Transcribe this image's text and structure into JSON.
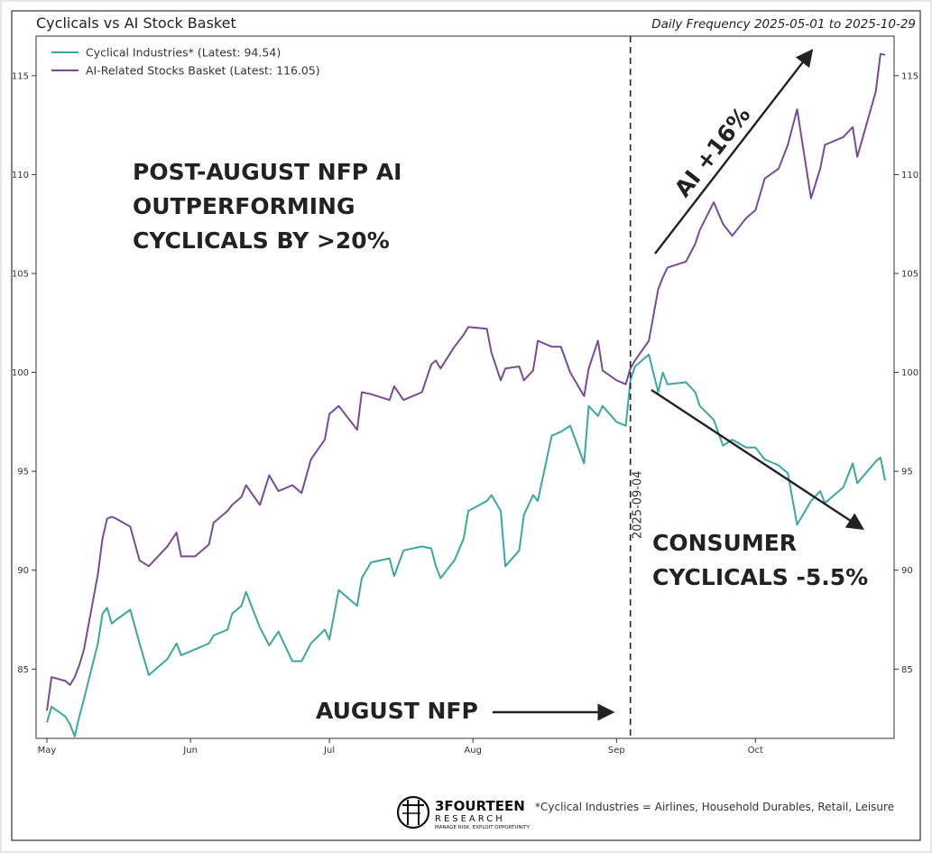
{
  "header": {
    "title": "Cyclicals vs AI Stock Basket",
    "subtitle": "Daily Frequency 2025-05-01 to 2025-10-29"
  },
  "legend": [
    {
      "label": "Cyclical Industries* (Latest: 94.54)",
      "color": "#3aa8a0"
    },
    {
      "label": "AI-Related Stocks Basket (Latest: 116.05)",
      "color": "#7a4a98"
    }
  ],
  "annotations": {
    "headline_lines": [
      "POST-AUGUST NFP AI",
      "OUTPERFORMING",
      "CYCLICALS BY >20%"
    ],
    "ai_label": "AI +16%",
    "consumer_lines": [
      "CONSUMER",
      "CYCLICALS -5.5%"
    ],
    "nfp_label": "AUGUST NFP",
    "vline_label": "2025-09-04"
  },
  "footer": {
    "brand_name": "3FOURTEEN",
    "brand_sub": "RESEARCH",
    "brand_tagline": "MANAGE RISK. EXPLOIT OPPORTUNITY",
    "note": "*Cyclical Industries = Airlines, Household Durables, Retail, Leisure"
  },
  "chart_data": {
    "type": "line",
    "title": "Cyclicals vs AI Stock Basket",
    "subtitle": "Daily Frequency 2025-05-01 to 2025-10-29",
    "x_start": "2025-05-01",
    "x_end": "2025-10-29",
    "ylim": [
      81.5,
      117
    ],
    "yticks": [
      85,
      90,
      95,
      100,
      105,
      110,
      115
    ],
    "xticks": [
      {
        "label": "May",
        "date": "2025-05-01"
      },
      {
        "label": "Jun",
        "date": "2025-06-01"
      },
      {
        "label": "Jul",
        "date": "2025-07-01"
      },
      {
        "label": "Aug",
        "date": "2025-08-01"
      },
      {
        "label": "Sep",
        "date": "2025-09-01"
      },
      {
        "label": "Oct",
        "date": "2025-10-01"
      }
    ],
    "vline": {
      "date": "2025-09-04",
      "label": "2025-09-04"
    },
    "legend_position": "top-left",
    "grid": false,
    "series": [
      {
        "name": "Cyclical Industries* (Latest: 94.54)",
        "color": "#3aa8a0",
        "points": [
          [
            "2025-05-01",
            82.3
          ],
          [
            "2025-05-02",
            83.1
          ],
          [
            "2025-05-05",
            82.6
          ],
          [
            "2025-05-06",
            82.2
          ],
          [
            "2025-05-07",
            81.6
          ],
          [
            "2025-05-08",
            82.6
          ],
          [
            "2025-05-09",
            83.5
          ],
          [
            "2025-05-12",
            86.3
          ],
          [
            "2025-05-13",
            87.8
          ],
          [
            "2025-05-14",
            88.1
          ],
          [
            "2025-05-15",
            87.3
          ],
          [
            "2025-05-16",
            87.5
          ],
          [
            "2025-05-19",
            88.0
          ],
          [
            "2025-05-21",
            86.3
          ],
          [
            "2025-05-23",
            84.7
          ],
          [
            "2025-05-27",
            85.5
          ],
          [
            "2025-05-29",
            86.3
          ],
          [
            "2025-05-30",
            85.7
          ],
          [
            "2025-06-02",
            86.0
          ],
          [
            "2025-06-05",
            86.3
          ],
          [
            "2025-06-06",
            86.7
          ],
          [
            "2025-06-09",
            87.0
          ],
          [
            "2025-06-10",
            87.8
          ],
          [
            "2025-06-12",
            88.2
          ],
          [
            "2025-06-13",
            88.9
          ],
          [
            "2025-06-16",
            87.1
          ],
          [
            "2025-06-18",
            86.2
          ],
          [
            "2025-06-20",
            86.9
          ],
          [
            "2025-06-23",
            85.4
          ],
          [
            "2025-06-25",
            85.4
          ],
          [
            "2025-06-27",
            86.3
          ],
          [
            "2025-06-30",
            87.0
          ],
          [
            "2025-07-01",
            86.5
          ],
          [
            "2025-07-03",
            89.0
          ],
          [
            "2025-07-07",
            88.2
          ],
          [
            "2025-07-08",
            89.6
          ],
          [
            "2025-07-10",
            90.4
          ],
          [
            "2025-07-14",
            90.6
          ],
          [
            "2025-07-15",
            89.7
          ],
          [
            "2025-07-17",
            91.0
          ],
          [
            "2025-07-21",
            91.2
          ],
          [
            "2025-07-23",
            91.1
          ],
          [
            "2025-07-24",
            90.2
          ],
          [
            "2025-07-25",
            89.6
          ],
          [
            "2025-07-28",
            90.5
          ],
          [
            "2025-07-30",
            91.6
          ],
          [
            "2025-07-31",
            93.0
          ],
          [
            "2025-08-04",
            93.5
          ],
          [
            "2025-08-05",
            93.8
          ],
          [
            "2025-08-07",
            93.0
          ],
          [
            "2025-08-08",
            90.2
          ],
          [
            "2025-08-11",
            91.0
          ],
          [
            "2025-08-12",
            92.8
          ],
          [
            "2025-08-14",
            93.8
          ],
          [
            "2025-08-15",
            93.5
          ],
          [
            "2025-08-18",
            96.8
          ],
          [
            "2025-08-20",
            97.0
          ],
          [
            "2025-08-22",
            97.3
          ],
          [
            "2025-08-25",
            95.4
          ],
          [
            "2025-08-26",
            98.3
          ],
          [
            "2025-08-28",
            97.8
          ],
          [
            "2025-08-29",
            98.3
          ],
          [
            "2025-09-01",
            97.5
          ],
          [
            "2025-09-03",
            97.3
          ],
          [
            "2025-09-04",
            99.6
          ],
          [
            "2025-09-05",
            100.3
          ],
          [
            "2025-09-08",
            100.9
          ],
          [
            "2025-09-10",
            99.0
          ],
          [
            "2025-09-11",
            100.0
          ],
          [
            "2025-09-12",
            99.4
          ],
          [
            "2025-09-16",
            99.5
          ],
          [
            "2025-09-18",
            99.0
          ],
          [
            "2025-09-19",
            98.3
          ],
          [
            "2025-09-22",
            97.6
          ],
          [
            "2025-09-24",
            96.3
          ],
          [
            "2025-09-26",
            96.6
          ],
          [
            "2025-09-29",
            96.2
          ],
          [
            "2025-10-01",
            96.2
          ],
          [
            "2025-10-03",
            95.6
          ],
          [
            "2025-10-06",
            95.3
          ],
          [
            "2025-10-08",
            94.9
          ],
          [
            "2025-10-10",
            92.3
          ],
          [
            "2025-10-13",
            93.5
          ],
          [
            "2025-10-15",
            94.0
          ],
          [
            "2025-10-16",
            93.4
          ],
          [
            "2025-10-20",
            94.2
          ],
          [
            "2025-10-22",
            95.4
          ],
          [
            "2025-10-23",
            94.4
          ],
          [
            "2025-10-27",
            95.5
          ],
          [
            "2025-10-28",
            95.7
          ],
          [
            "2025-10-29",
            94.54
          ]
        ]
      },
      {
        "name": "AI-Related Stocks Basket (Latest: 116.05)",
        "color": "#7a4a98",
        "points": [
          [
            "2025-05-01",
            82.9
          ],
          [
            "2025-05-02",
            84.6
          ],
          [
            "2025-05-05",
            84.4
          ],
          [
            "2025-05-06",
            84.2
          ],
          [
            "2025-05-07",
            84.6
          ],
          [
            "2025-05-08",
            85.2
          ],
          [
            "2025-05-09",
            86.0
          ],
          [
            "2025-05-12",
            89.8
          ],
          [
            "2025-05-13",
            91.6
          ],
          [
            "2025-05-14",
            92.6
          ],
          [
            "2025-05-15",
            92.7
          ],
          [
            "2025-05-16",
            92.6
          ],
          [
            "2025-05-19",
            92.2
          ],
          [
            "2025-05-21",
            90.5
          ],
          [
            "2025-05-23",
            90.2
          ],
          [
            "2025-05-27",
            91.2
          ],
          [
            "2025-05-29",
            91.9
          ],
          [
            "2025-05-30",
            90.7
          ],
          [
            "2025-06-02",
            90.7
          ],
          [
            "2025-06-05",
            91.3
          ],
          [
            "2025-06-06",
            92.4
          ],
          [
            "2025-06-09",
            93.0
          ],
          [
            "2025-06-10",
            93.3
          ],
          [
            "2025-06-12",
            93.7
          ],
          [
            "2025-06-13",
            94.3
          ],
          [
            "2025-06-16",
            93.3
          ],
          [
            "2025-06-18",
            94.8
          ],
          [
            "2025-06-20",
            94.0
          ],
          [
            "2025-06-23",
            94.3
          ],
          [
            "2025-06-25",
            93.9
          ],
          [
            "2025-06-27",
            95.6
          ],
          [
            "2025-06-30",
            96.6
          ],
          [
            "2025-07-01",
            97.9
          ],
          [
            "2025-07-03",
            98.3
          ],
          [
            "2025-07-07",
            97.1
          ],
          [
            "2025-07-08",
            99.0
          ],
          [
            "2025-07-10",
            98.9
          ],
          [
            "2025-07-14",
            98.6
          ],
          [
            "2025-07-15",
            99.3
          ],
          [
            "2025-07-17",
            98.6
          ],
          [
            "2025-07-21",
            99.0
          ],
          [
            "2025-07-23",
            100.4
          ],
          [
            "2025-07-24",
            100.6
          ],
          [
            "2025-07-25",
            100.2
          ],
          [
            "2025-07-28",
            101.3
          ],
          [
            "2025-07-30",
            101.9
          ],
          [
            "2025-07-31",
            102.3
          ],
          [
            "2025-08-04",
            102.2
          ],
          [
            "2025-08-05",
            101.0
          ],
          [
            "2025-08-07",
            99.6
          ],
          [
            "2025-08-08",
            100.2
          ],
          [
            "2025-08-11",
            100.3
          ],
          [
            "2025-08-12",
            99.6
          ],
          [
            "2025-08-14",
            100.1
          ],
          [
            "2025-08-15",
            101.6
          ],
          [
            "2025-08-18",
            101.3
          ],
          [
            "2025-08-20",
            101.3
          ],
          [
            "2025-08-22",
            100.0
          ],
          [
            "2025-08-25",
            98.8
          ],
          [
            "2025-08-26",
            100.2
          ],
          [
            "2025-08-28",
            101.6
          ],
          [
            "2025-08-29",
            100.1
          ],
          [
            "2025-09-01",
            99.6
          ],
          [
            "2025-09-03",
            99.4
          ],
          [
            "2025-09-04",
            100.2
          ],
          [
            "2025-09-05",
            100.6
          ],
          [
            "2025-09-08",
            101.6
          ],
          [
            "2025-09-10",
            104.2
          ],
          [
            "2025-09-11",
            104.8
          ],
          [
            "2025-09-12",
            105.3
          ],
          [
            "2025-09-16",
            105.6
          ],
          [
            "2025-09-18",
            106.5
          ],
          [
            "2025-09-19",
            107.2
          ],
          [
            "2025-09-22",
            108.6
          ],
          [
            "2025-09-24",
            107.5
          ],
          [
            "2025-09-26",
            106.9
          ],
          [
            "2025-09-29",
            107.8
          ],
          [
            "2025-10-01",
            108.2
          ],
          [
            "2025-10-03",
            109.8
          ],
          [
            "2025-10-06",
            110.3
          ],
          [
            "2025-10-08",
            111.5
          ],
          [
            "2025-10-10",
            113.3
          ],
          [
            "2025-10-13",
            108.8
          ],
          [
            "2025-10-15",
            110.3
          ],
          [
            "2025-10-16",
            111.5
          ],
          [
            "2025-10-20",
            111.9
          ],
          [
            "2025-10-22",
            112.4
          ],
          [
            "2025-10-23",
            110.9
          ],
          [
            "2025-10-27",
            114.2
          ],
          [
            "2025-10-28",
            116.1
          ],
          [
            "2025-10-29",
            116.05
          ]
        ]
      }
    ]
  }
}
